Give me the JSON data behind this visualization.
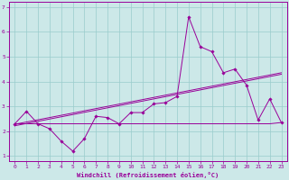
{
  "xlabel": "Windchill (Refroidissement éolien,°C)",
  "ylabel": "",
  "background_color": "#cce8e8",
  "line_color": "#990099",
  "xlim": [
    -0.5,
    23.5
  ],
  "ylim": [
    0.8,
    7.2
  ],
  "x": [
    0,
    1,
    2,
    3,
    4,
    5,
    6,
    7,
    8,
    9,
    10,
    11,
    12,
    13,
    14,
    15,
    16,
    17,
    18,
    19,
    20,
    21,
    22,
    23
  ],
  "y_main": [
    2.3,
    2.8,
    2.3,
    2.1,
    1.6,
    1.2,
    1.7,
    2.6,
    2.55,
    2.3,
    2.75,
    2.75,
    3.1,
    3.15,
    3.4,
    6.6,
    5.4,
    5.2,
    4.35,
    4.5,
    3.85,
    2.45,
    3.3,
    2.35
  ],
  "y_trend1": [
    2.28,
    2.37,
    2.46,
    2.55,
    2.64,
    2.73,
    2.82,
    2.91,
    3.0,
    3.09,
    3.18,
    3.27,
    3.36,
    3.45,
    3.54,
    3.63,
    3.72,
    3.81,
    3.9,
    3.99,
    4.08,
    4.17,
    4.26,
    4.35
  ],
  "y_trend2": [
    2.22,
    2.31,
    2.4,
    2.49,
    2.58,
    2.67,
    2.76,
    2.85,
    2.94,
    3.03,
    3.12,
    3.21,
    3.3,
    3.39,
    3.48,
    3.57,
    3.66,
    3.75,
    3.84,
    3.93,
    4.02,
    4.11,
    4.2,
    4.29
  ],
  "y_flat": [
    2.3,
    2.3,
    2.3,
    2.3,
    2.3,
    2.3,
    2.3,
    2.3,
    2.3,
    2.3,
    2.3,
    2.3,
    2.3,
    2.3,
    2.3,
    2.3,
    2.3,
    2.3,
    2.3,
    2.3,
    2.3,
    2.3,
    2.3,
    2.35
  ],
  "grid_color": "#99cccc",
  "yticks": [
    1,
    2,
    3,
    4,
    5,
    6,
    7
  ],
  "xticks": [
    0,
    1,
    2,
    3,
    4,
    5,
    6,
    7,
    8,
    9,
    10,
    11,
    12,
    13,
    14,
    15,
    16,
    17,
    18,
    19,
    20,
    21,
    22,
    23
  ]
}
